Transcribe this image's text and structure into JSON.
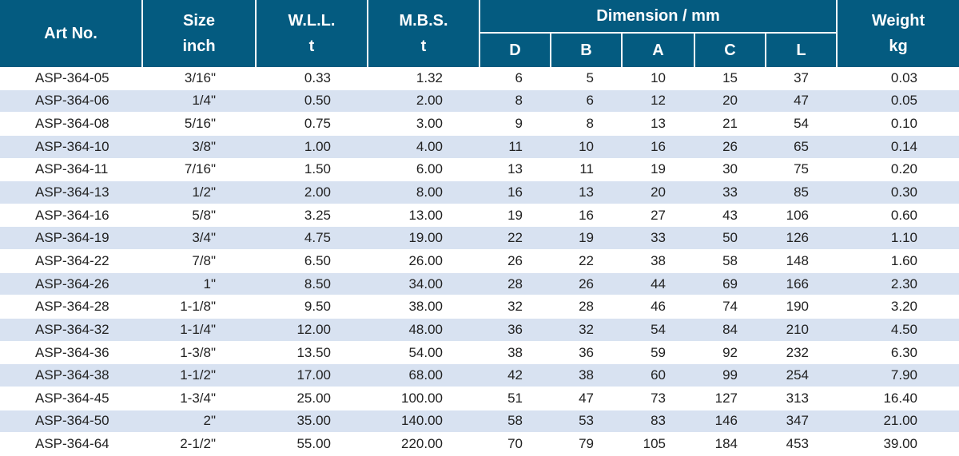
{
  "headers": {
    "art_no": "Art No.",
    "size": [
      "Size",
      "inch"
    ],
    "wll": [
      "W.L.L.",
      "t"
    ],
    "mbs": [
      "M.B.S.",
      "t"
    ],
    "dimension": "Dimension / mm",
    "dims": [
      "D",
      "B",
      "A",
      "C",
      "L"
    ],
    "weight": [
      "Weight",
      "kg"
    ]
  },
  "colors": {
    "header_bg": "#045b80",
    "stripe_bg": "#d8e2f1",
    "text": "#222222"
  },
  "rows": [
    [
      "ASP-364-05",
      "3/16\"",
      "0.33",
      "1.32",
      "6",
      "5",
      "10",
      "15",
      "37",
      "0.03"
    ],
    [
      "ASP-364-06",
      "1/4\"",
      "0.50",
      "2.00",
      "8",
      "6",
      "12",
      "20",
      "47",
      "0.05"
    ],
    [
      "ASP-364-08",
      "5/16\"",
      "0.75",
      "3.00",
      "9",
      "8",
      "13",
      "21",
      "54",
      "0.10"
    ],
    [
      "ASP-364-10",
      "3/8\"",
      "1.00",
      "4.00",
      "11",
      "10",
      "16",
      "26",
      "65",
      "0.14"
    ],
    [
      "ASP-364-11",
      "7/16\"",
      "1.50",
      "6.00",
      "13",
      "11",
      "19",
      "30",
      "75",
      "0.20"
    ],
    [
      "ASP-364-13",
      "1/2\"",
      "2.00",
      "8.00",
      "16",
      "13",
      "20",
      "33",
      "85",
      "0.30"
    ],
    [
      "ASP-364-16",
      "5/8\"",
      "3.25",
      "13.00",
      "19",
      "16",
      "27",
      "43",
      "106",
      "0.60"
    ],
    [
      "ASP-364-19",
      "3/4\"",
      "4.75",
      "19.00",
      "22",
      "19",
      "33",
      "50",
      "126",
      "1.10"
    ],
    [
      "ASP-364-22",
      "7/8\"",
      "6.50",
      "26.00",
      "26",
      "22",
      "38",
      "58",
      "148",
      "1.60"
    ],
    [
      "ASP-364-26",
      "1\"",
      "8.50",
      "34.00",
      "28",
      "26",
      "44",
      "69",
      "166",
      "2.30"
    ],
    [
      "ASP-364-28",
      "1-1/8\"",
      "9.50",
      "38.00",
      "32",
      "28",
      "46",
      "74",
      "190",
      "3.20"
    ],
    [
      "ASP-364-32",
      "1-1/4\"",
      "12.00",
      "48.00",
      "36",
      "32",
      "54",
      "84",
      "210",
      "4.50"
    ],
    [
      "ASP-364-36",
      "1-3/8\"",
      "13.50",
      "54.00",
      "38",
      "36",
      "59",
      "92",
      "232",
      "6.30"
    ],
    [
      "ASP-364-38",
      "1-1/2\"",
      "17.00",
      "68.00",
      "42",
      "38",
      "60",
      "99",
      "254",
      "7.90"
    ],
    [
      "ASP-364-45",
      "1-3/4\"",
      "25.00",
      "100.00",
      "51",
      "47",
      "73",
      "127",
      "313",
      "16.40"
    ],
    [
      "ASP-364-50",
      "2\"",
      "35.00",
      "140.00",
      "58",
      "53",
      "83",
      "146",
      "347",
      "21.00"
    ],
    [
      "ASP-364-64",
      "2-1/2\"",
      "55.00",
      "220.00",
      "70",
      "79",
      "105",
      "184",
      "453",
      "39.00"
    ]
  ]
}
